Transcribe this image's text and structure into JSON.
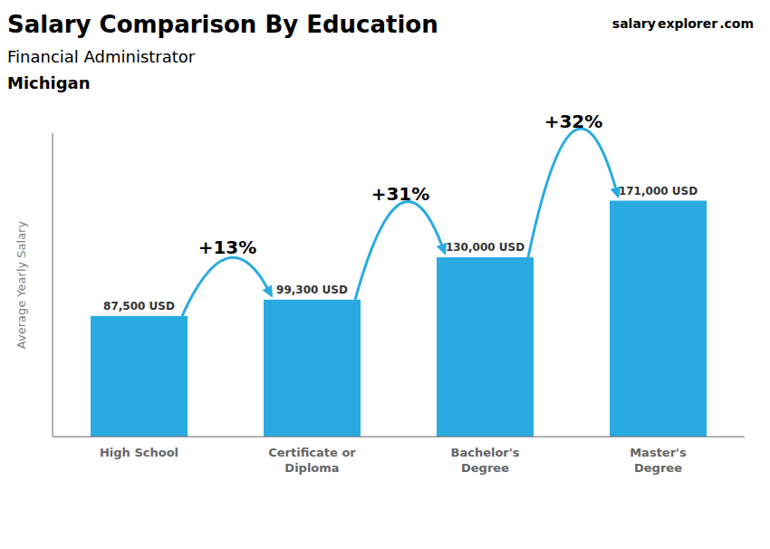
{
  "chart_data": {
    "type": "bar",
    "title": "Salary Comparison By Education",
    "subtitle": "Financial Administrator",
    "annotations": [
      "Michigan",
      "salary",
      "explorer",
      ".com"
    ],
    "arrow_labels": [
      "+13%",
      "+31%",
      "+32%"
    ],
    "categories": [
      "High School",
      "Certificate or\nDiploma",
      "Bachelor's\nDegree",
      "Master's\nDegree"
    ],
    "values": [
      87500,
      99300,
      130000,
      171000
    ],
    "value_labels": [
      "87,500 USD",
      "99,300 USD",
      "130,000 USD",
      "171,000 USD"
    ],
    "color": "#29ABE2",
    "ylabel": "Average Yearly Salary",
    "ylim": [
      0,
      220000
    ],
    "grid": false,
    "data_labels": true,
    "tick_labels": "x"
  }
}
